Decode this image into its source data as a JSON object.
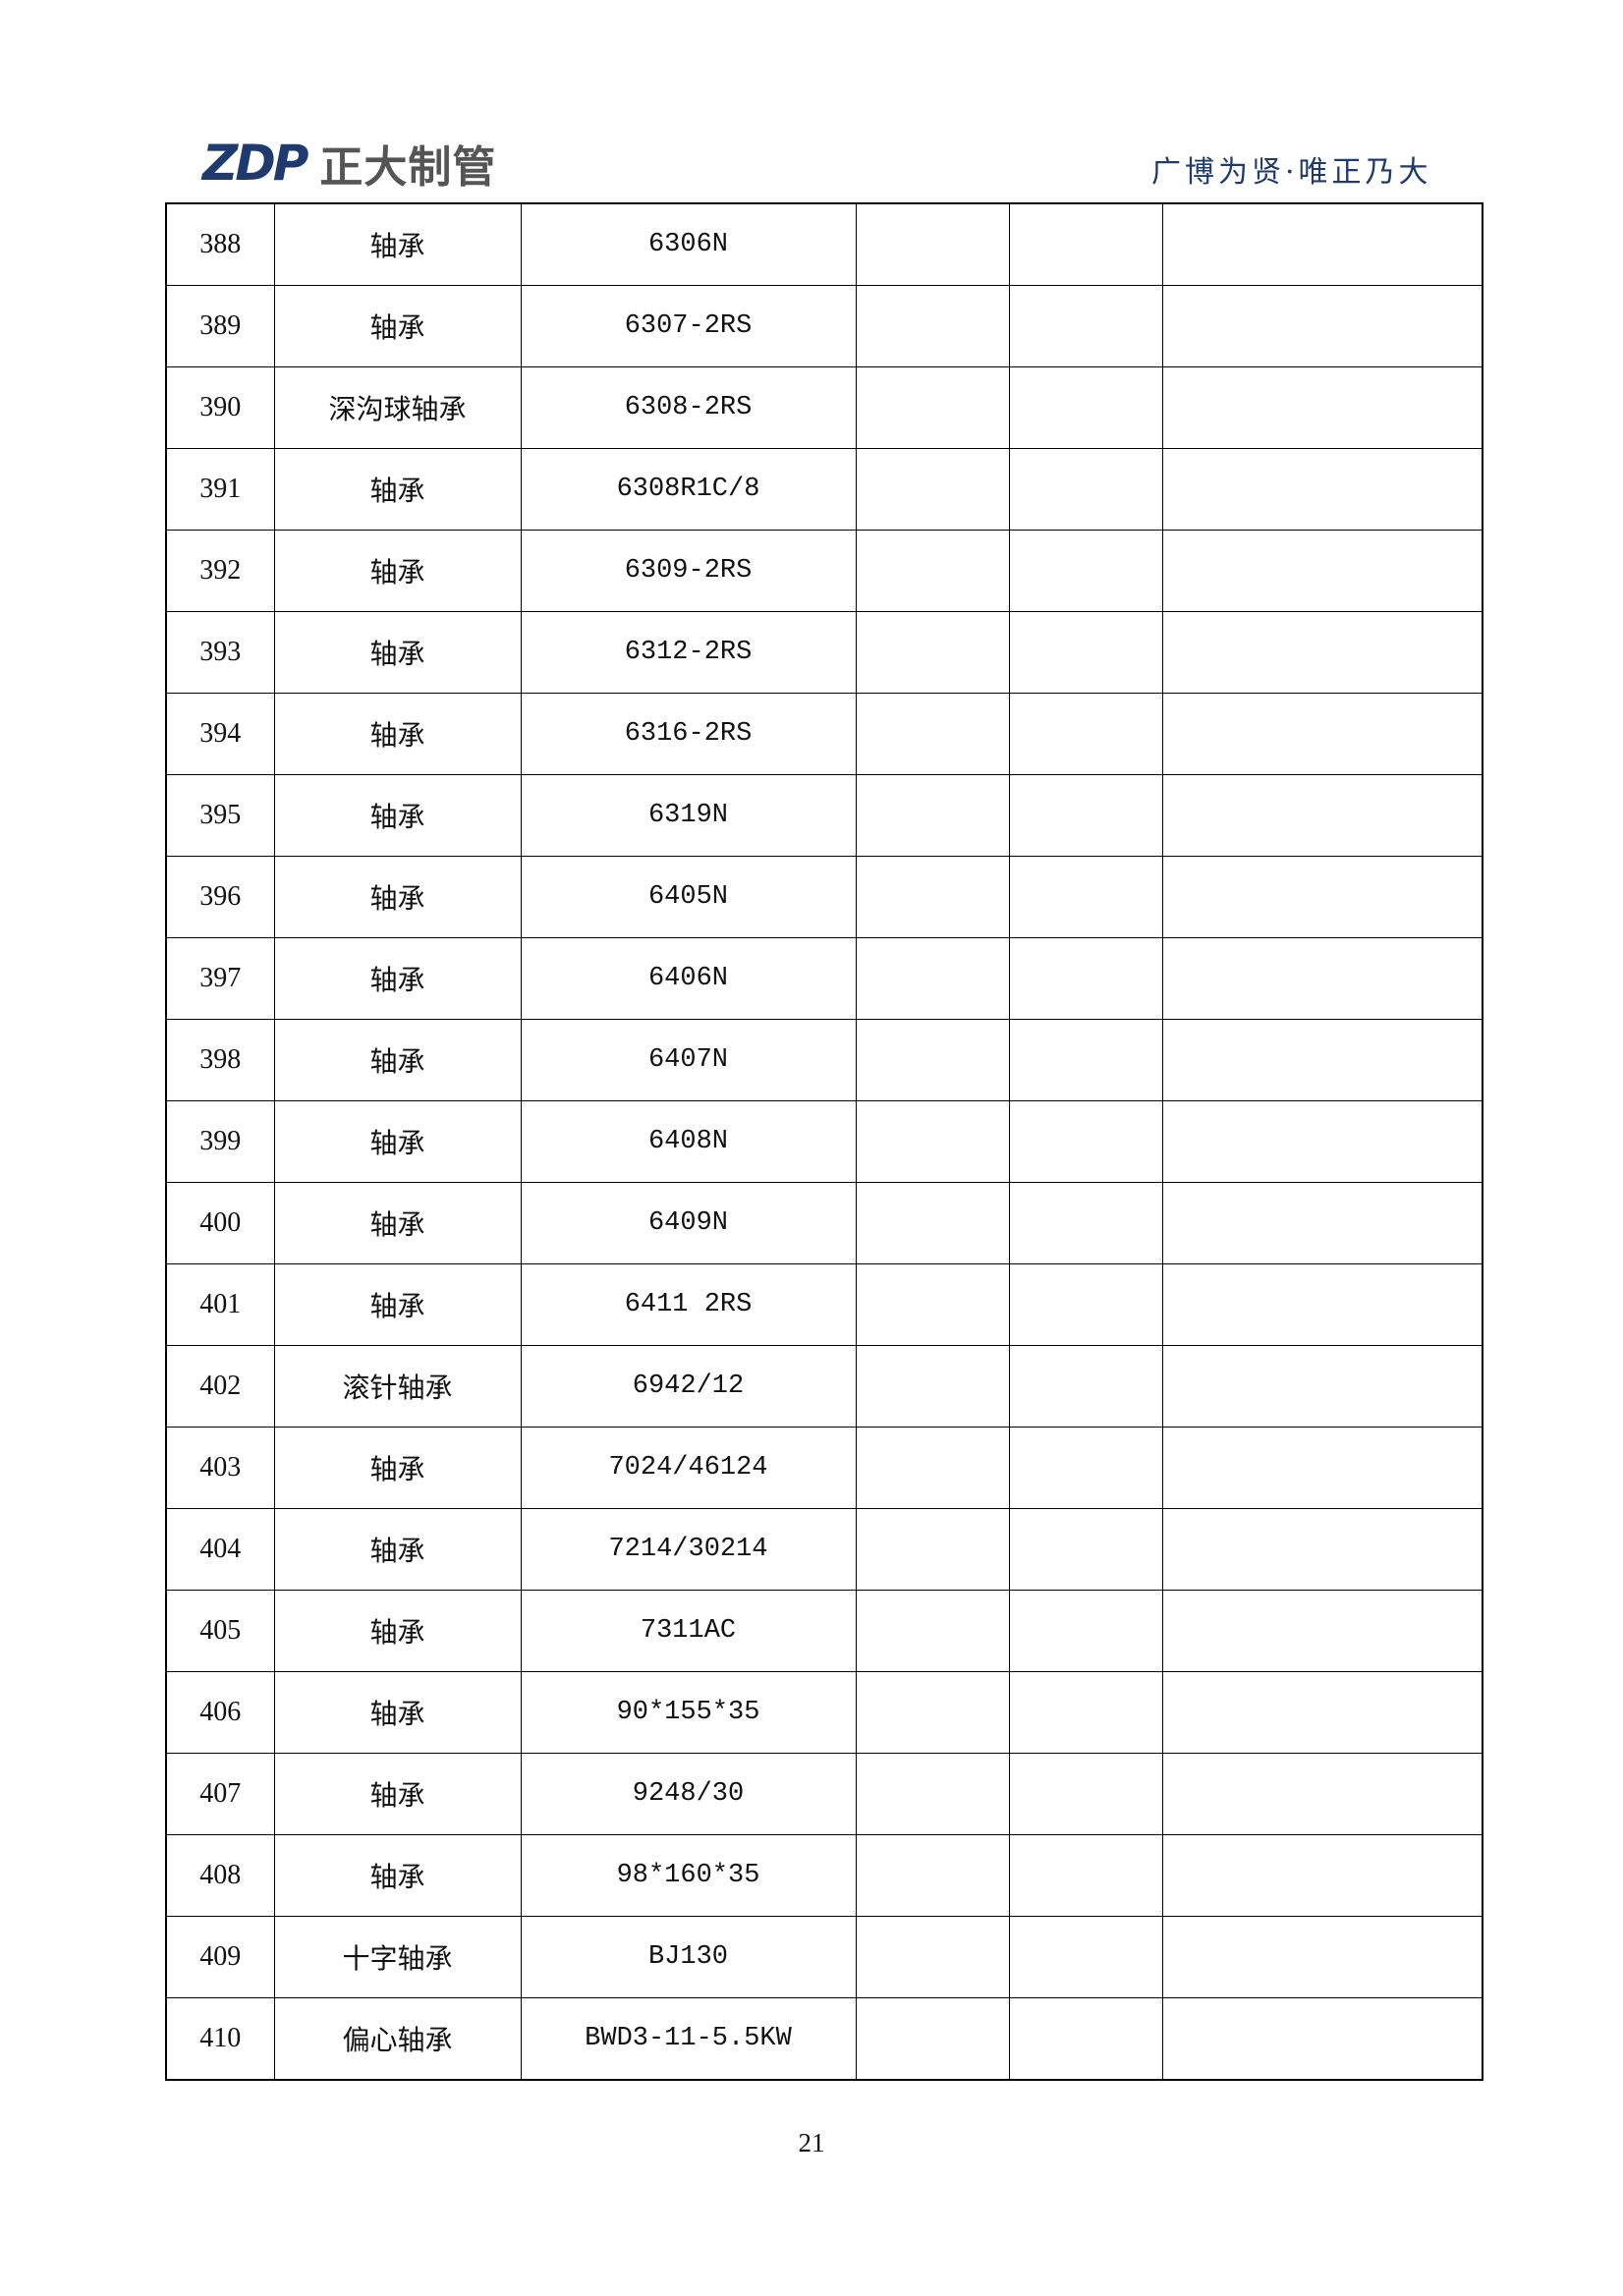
{
  "header": {
    "logo_mark": "ZDP",
    "logo_name": "正大制管",
    "slogan": "广博为贤·唯正乃大"
  },
  "rows": [
    {
      "no": "388",
      "name": "轴承",
      "model": "6306N"
    },
    {
      "no": "389",
      "name": "轴承",
      "model": "6307-2RS"
    },
    {
      "no": "390",
      "name": "深沟球轴承",
      "model": "6308-2RS"
    },
    {
      "no": "391",
      "name": "轴承",
      "model": "6308R1C/8"
    },
    {
      "no": "392",
      "name": "轴承",
      "model": "6309-2RS"
    },
    {
      "no": "393",
      "name": "轴承",
      "model": "6312-2RS"
    },
    {
      "no": "394",
      "name": "轴承",
      "model": "6316-2RS"
    },
    {
      "no": "395",
      "name": "轴承",
      "model": "6319N"
    },
    {
      "no": "396",
      "name": "轴承",
      "model": "6405N"
    },
    {
      "no": "397",
      "name": "轴承",
      "model": "6406N"
    },
    {
      "no": "398",
      "name": "轴承",
      "model": "6407N"
    },
    {
      "no": "399",
      "name": "轴承",
      "model": "6408N"
    },
    {
      "no": "400",
      "name": "轴承",
      "model": "6409N"
    },
    {
      "no": "401",
      "name": "轴承",
      "model": "6411 2RS"
    },
    {
      "no": "402",
      "name": "滚针轴承",
      "model": "6942/12"
    },
    {
      "no": "403",
      "name": "轴承",
      "model": "7024/46124"
    },
    {
      "no": "404",
      "name": "轴承",
      "model": "7214/30214"
    },
    {
      "no": "405",
      "name": "轴承",
      "model": "7311AC"
    },
    {
      "no": "406",
      "name": "轴承",
      "model": "90*155*35"
    },
    {
      "no": "407",
      "name": "轴承",
      "model": "9248/30"
    },
    {
      "no": "408",
      "name": "轴承",
      "model": "98*160*35"
    },
    {
      "no": "409",
      "name": "十字轴承",
      "model": "BJ130"
    },
    {
      "no": "410",
      "name": "偏心轴承",
      "model": "BWD3-11-5.5KW"
    }
  ],
  "footer": {
    "page_number": "21"
  }
}
